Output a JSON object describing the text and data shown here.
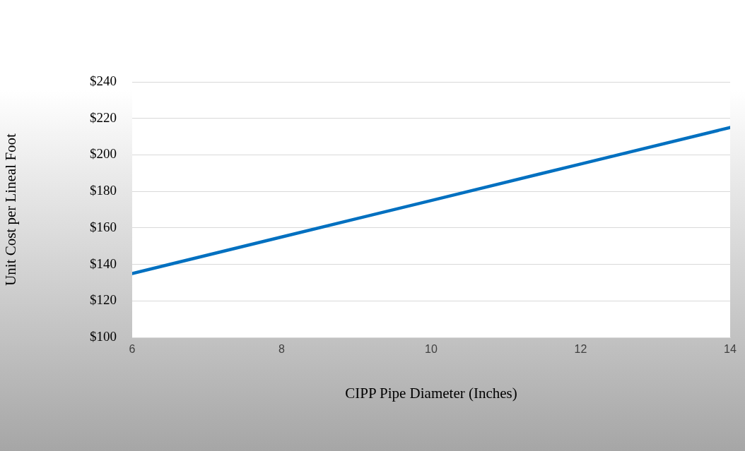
{
  "chart_data": {
    "type": "line",
    "xlabel": "CIPP Pipe Diameter (Inches)",
    "ylabel": "Unit Cost per Lineal Foot",
    "x": [
      6,
      8,
      10,
      12,
      14
    ],
    "series": [
      {
        "color": "#0070c0",
        "values": [
          135,
          155,
          175,
          195,
          215
        ]
      }
    ],
    "xlim": [
      6,
      14
    ],
    "xticks": [
      6,
      8,
      10,
      12,
      14
    ],
    "ylim": [
      100,
      240
    ],
    "yticks": [
      {
        "value": 100,
        "label": "$100"
      },
      {
        "value": 120,
        "label": "$120"
      },
      {
        "value": 140,
        "label": "$140"
      },
      {
        "value": 160,
        "label": "$160"
      },
      {
        "value": 180,
        "label": "$180"
      },
      {
        "value": 200,
        "label": "$200"
      },
      {
        "value": 220,
        "label": "$220"
      },
      {
        "value": 240,
        "label": "$240"
      }
    ],
    "grid": "y",
    "legend": false,
    "marker": "none",
    "line_style": "solid"
  }
}
